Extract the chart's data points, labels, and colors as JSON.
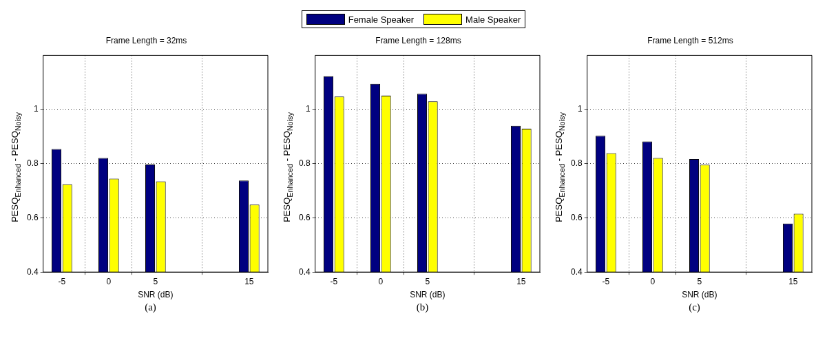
{
  "chart_data": [
    {
      "type": "bar",
      "title": "Frame Length = 32ms",
      "xlabel": "SNR (dB)",
      "ylabel": "PESQ$_{Enhanced}$ - PESQ$_{Noisy}$",
      "annotations": [
        "(a)"
      ],
      "x": [
        -5,
        0,
        5,
        15
      ],
      "series": [
        {
          "name": "Female Speaker",
          "color": "#000080",
          "values": [
            0.854,
            0.821,
            0.797,
            0.738
          ]
        },
        {
          "name": "Male Speaker",
          "color": "#ffff00",
          "values": [
            0.724,
            0.745,
            0.735,
            0.649
          ]
        }
      ],
      "xlim": [
        -7,
        17
      ],
      "xticks": [
        -5,
        0,
        5,
        15
      ],
      "ylim": [
        0.4,
        1.2
      ],
      "yticks": [
        0.4,
        0.6,
        0.8,
        1
      ],
      "grid": true,
      "legend": "top"
    },
    {
      "type": "bar",
      "title": "Frame Length = 128ms",
      "xlabel": "SNR (dB)",
      "ylabel": "PESQ$_{Enhanced}$ - PESQ$_{Noisy}$",
      "annotations": [
        "(b)"
      ],
      "x": [
        -5,
        0,
        5,
        15
      ],
      "series": [
        {
          "color": "#000080",
          "values": [
            1.123,
            1.095,
            1.058,
            0.94
          ]
        },
        {
          "color": "#ffff00",
          "values": [
            1.048,
            1.051,
            1.03,
            0.929
          ]
        }
      ],
      "xlim": [
        -7,
        17
      ],
      "xticks": [
        -5,
        0,
        5,
        15
      ],
      "ylim": [
        0.4,
        1.2
      ],
      "yticks": [
        0.4,
        0.6,
        0.8,
        1
      ],
      "grid": true
    },
    {
      "type": "bar",
      "title": "Frame Length = 512ms",
      "xlabel": "SNR (dB)",
      "ylabel": "PESQ$_{Enhanced}$ - PESQ$_{Noisy}$",
      "annotations": [
        "(c)"
      ],
      "x": [
        -5,
        0,
        5,
        15
      ],
      "series": [
        {
          "color": "#000080",
          "values": [
            0.903,
            0.882,
            0.817,
            0.579
          ]
        },
        {
          "color": "#ffff00",
          "values": [
            0.839,
            0.821,
            0.796,
            0.615
          ]
        }
      ],
      "xlim": [
        -7,
        17
      ],
      "xticks": [
        -5,
        0,
        5,
        15
      ],
      "ylim": [
        0.4,
        1.2
      ],
      "yticks": [
        0.4,
        0.6,
        0.8,
        1
      ],
      "grid": true
    }
  ]
}
